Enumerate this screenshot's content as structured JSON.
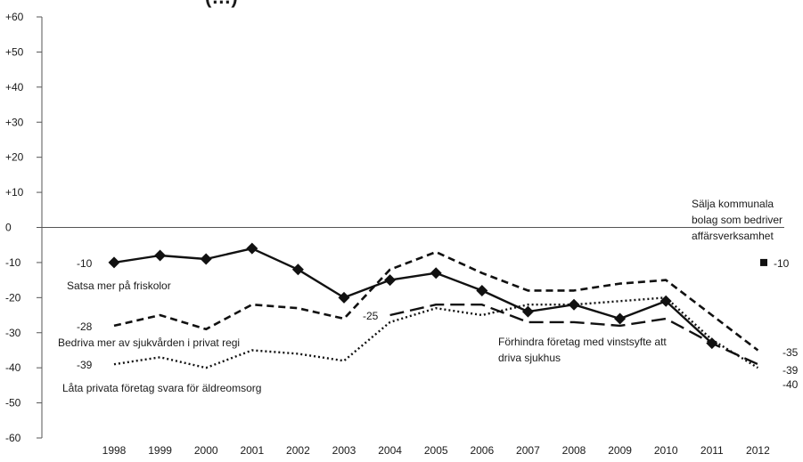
{
  "chart_data": {
    "type": "line",
    "title": "(…)",
    "xlabel": "",
    "ylabel": "",
    "x": [
      "1998",
      "1999",
      "2000",
      "2001",
      "2002",
      "2003",
      "2004",
      "2005",
      "2006",
      "2007",
      "2008",
      "2009",
      "2010",
      "2011",
      "2012"
    ],
    "ylim": [
      -60,
      60
    ],
    "yticks": [
      "+60",
      "+50",
      "+40",
      "+30",
      "+20",
      "+10",
      "0",
      "-10",
      "-20",
      "-30",
      "-40",
      "-50",
      "-60"
    ],
    "grid": false,
    "series": [
      {
        "name": "Satsa mer på friskolor",
        "style": "solid-diamond",
        "values": [
          -10,
          -8,
          -9,
          -6,
          -12,
          -20,
          -15,
          -13,
          -18,
          -24,
          -22,
          -26,
          -21,
          -33,
          null
        ],
        "start_label": "-10",
        "end_label": ""
      },
      {
        "name": "Bedriva mer av sjukvården i privat regi",
        "style": "dashed",
        "values": [
          -28,
          -25,
          -29,
          -22,
          -23,
          -26,
          -12,
          -7,
          -13,
          -18,
          -18,
          -16,
          -15,
          -25,
          -35
        ],
        "start_label": "-28",
        "end_label": "-35"
      },
      {
        "name": "Låta privata företag svara för äldreomsorg",
        "style": "dotted",
        "values": [
          -39,
          -37,
          -40,
          -35,
          -36,
          -38,
          -27,
          -23,
          -25,
          -22,
          -22,
          -21,
          -20,
          -32,
          -40
        ],
        "start_label": "-39",
        "end_label": "-40"
      },
      {
        "name": "Förhindra företag med vinstsyfte att driva sjukhus",
        "style": "long-dash",
        "values": [
          null,
          null,
          null,
          null,
          null,
          null,
          -25,
          -22,
          -22,
          -27,
          -27,
          -28,
          -26,
          -33,
          -39
        ],
        "start_label": "-25",
        "end_label": "-39"
      },
      {
        "name": "Sälja kommunala bolag som bedriver affärsverksamhet",
        "style": "square-point",
        "values": [
          null,
          null,
          null,
          null,
          null,
          null,
          null,
          null,
          null,
          null,
          null,
          null,
          null,
          null,
          -10
        ],
        "start_label": "",
        "end_label": "-10"
      }
    ],
    "labels": {
      "friskolor": "Satsa mer på friskolor",
      "sjukvard": "Bedriva mer av sjukvården i privat regi",
      "aldreomsorg": "Låta privata företag svara för äldreomsorg",
      "sjukhus_1": "Förhindra företag med vinstsyfte att",
      "sjukhus_2": "driva sjukhus",
      "bolag_1": "Sälja kommunala",
      "bolag_2": "bolag som bedriver",
      "bolag_3": "affärsverksamhet"
    }
  }
}
